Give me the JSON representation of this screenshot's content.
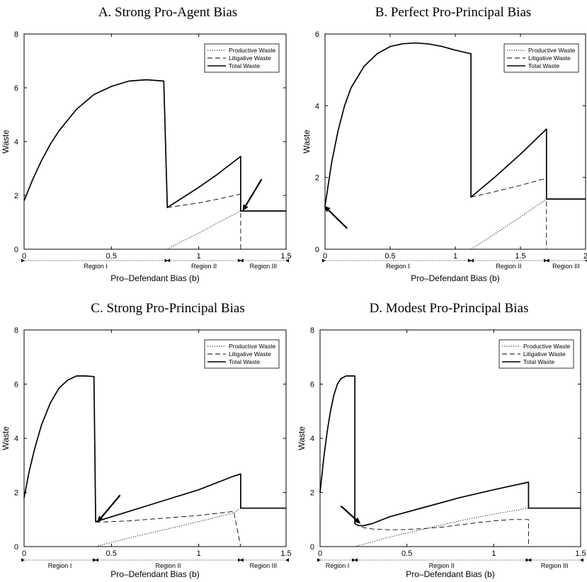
{
  "chart_data": [
    {
      "type": "line",
      "title": "A. Strong Pro-Agent Bias",
      "xlabel": "Pro–Defendant Bias (b)",
      "ylabel": "Waste",
      "xlim": [
        0,
        1.5
      ],
      "ylim": [
        0,
        8
      ],
      "xticks": [
        {
          "v": 0,
          "t": "0"
        },
        {
          "v": 0.5,
          "t": "0.5"
        },
        {
          "v": 1,
          "t": "1"
        },
        {
          "v": 1.5,
          "t": "1.5"
        }
      ],
      "yticks": [
        {
          "v": 0,
          "t": "0"
        },
        {
          "v": 2,
          "t": "2"
        },
        {
          "v": 4,
          "t": "4"
        },
        {
          "v": 6,
          "t": "6"
        },
        {
          "v": 8,
          "t": "8"
        }
      ],
      "grid": false,
      "legend_position": "top-right",
      "series": [
        {
          "name": "Productive Waste",
          "style": "dotted",
          "x": [
            0.82,
            0.9,
            1.0,
            1.1,
            1.24,
            1.24,
            1.5
          ],
          "y": [
            0,
            0.28,
            0.6,
            0.95,
            1.42,
            1.42,
            1.42
          ]
        },
        {
          "name": "Litigative Waste",
          "style": "dashed",
          "x": [
            0.82,
            1.0,
            1.1,
            1.24,
            1.24
          ],
          "y": [
            1.55,
            1.72,
            1.85,
            2.05,
            0
          ]
        },
        {
          "name": "Total Waste",
          "style": "solid",
          "x": [
            0,
            0.05,
            0.1,
            0.15,
            0.2,
            0.3,
            0.4,
            0.5,
            0.6,
            0.7,
            0.8,
            0.8,
            0.82,
            1.0,
            1.1,
            1.24,
            1.24,
            1.5
          ],
          "y": [
            1.8,
            2.6,
            3.3,
            3.9,
            4.4,
            5.2,
            5.75,
            6.05,
            6.25,
            6.3,
            6.25,
            6.25,
            1.55,
            2.3,
            2.75,
            3.45,
            1.42,
            1.42
          ]
        }
      ],
      "regions": [
        {
          "label": "Region I",
          "from": 0,
          "to": 0.82
        },
        {
          "label": "Region II",
          "from": 0.82,
          "to": 1.24
        },
        {
          "label": "Region III",
          "from": 1.24,
          "to": 1.5
        }
      ],
      "arrow": {
        "from": [
          1.36,
          2.6
        ],
        "to": [
          1.26,
          1.52
        ]
      }
    },
    {
      "type": "line",
      "title": "B. Perfect Pro-Principal Bias",
      "xlabel": "Pro–Defendant Bias (b)",
      "ylabel": "Waste",
      "xlim": [
        0,
        2
      ],
      "ylim": [
        0,
        6
      ],
      "xticks": [
        {
          "v": 0,
          "t": "0"
        },
        {
          "v": 0.5,
          "t": "0.5"
        },
        {
          "v": 1,
          "t": "1"
        },
        {
          "v": 1.5,
          "t": "1.5"
        },
        {
          "v": 2,
          "t": "2"
        }
      ],
      "yticks": [
        {
          "v": 0,
          "t": "0"
        },
        {
          "v": 2,
          "t": "2"
        },
        {
          "v": 4,
          "t": "4"
        },
        {
          "v": 6,
          "t": "6"
        }
      ],
      "grid": false,
      "legend_position": "top-right",
      "series": [
        {
          "name": "Productive Waste",
          "style": "dotted",
          "x": [
            1.12,
            1.3,
            1.5,
            1.7,
            1.7,
            2.0
          ],
          "y": [
            0,
            0.42,
            0.9,
            1.4,
            1.4,
            1.4
          ]
        },
        {
          "name": "Litigative Waste",
          "style": "dashed",
          "x": [
            1.12,
            1.3,
            1.5,
            1.7,
            1.7
          ],
          "y": [
            1.45,
            1.6,
            1.78,
            1.98,
            0
          ]
        },
        {
          "name": "Total Waste",
          "style": "solid",
          "x": [
            0,
            0.05,
            0.1,
            0.15,
            0.2,
            0.3,
            0.4,
            0.5,
            0.6,
            0.7,
            0.8,
            0.9,
            1.0,
            1.12,
            1.12,
            1.3,
            1.5,
            1.7,
            1.7,
            2.0
          ],
          "y": [
            1.2,
            2.4,
            3.3,
            4.0,
            4.5,
            5.1,
            5.45,
            5.65,
            5.73,
            5.75,
            5.72,
            5.65,
            5.55,
            5.45,
            1.45,
            2.0,
            2.65,
            3.35,
            1.4,
            1.4
          ]
        }
      ],
      "regions": [
        {
          "label": "Region I",
          "from": 0,
          "to": 1.12
        },
        {
          "label": "Region II",
          "from": 1.12,
          "to": 1.7
        },
        {
          "label": "Region III",
          "from": 1.7,
          "to": 2.0
        }
      ],
      "arrow": {
        "from": [
          0.17,
          0.58
        ],
        "to": [
          0.01,
          1.15
        ]
      }
    },
    {
      "type": "line",
      "title": "C. Strong Pro-Principal Bias",
      "xlabel": "Pro–Defendant Bias (b)",
      "ylabel": "Waste",
      "xlim": [
        0,
        1.5
      ],
      "ylim": [
        0,
        8
      ],
      "xticks": [
        {
          "v": 0,
          "t": "0"
        },
        {
          "v": 0.5,
          "t": "0.5"
        },
        {
          "v": 1,
          "t": "1"
        },
        {
          "v": 1.5,
          "t": "1.5"
        }
      ],
      "yticks": [
        {
          "v": 0,
          "t": "0"
        },
        {
          "v": 2,
          "t": "2"
        },
        {
          "v": 4,
          "t": "4"
        },
        {
          "v": 6,
          "t": "6"
        },
        {
          "v": 8,
          "t": "8"
        }
      ],
      "grid": false,
      "legend_position": "top-right",
      "series": [
        {
          "name": "Productive Waste",
          "style": "dotted",
          "x": [
            0.41,
            0.6,
            0.8,
            1.0,
            1.2,
            1.24,
            1.24,
            1.5
          ],
          "y": [
            0,
            0.32,
            0.62,
            0.92,
            1.25,
            1.42,
            1.42,
            1.42
          ]
        },
        {
          "name": "Litigative Waste",
          "style": "dashed",
          "x": [
            0.41,
            0.6,
            0.8,
            1.0,
            1.2,
            1.24
          ],
          "y": [
            0.9,
            0.95,
            1.05,
            1.15,
            1.3,
            0
          ]
        },
        {
          "name": "Total Waste",
          "style": "solid",
          "x": [
            0,
            0.03,
            0.06,
            0.1,
            0.15,
            0.2,
            0.25,
            0.3,
            0.35,
            0.4,
            0.4,
            0.41,
            0.6,
            0.8,
            1.0,
            1.2,
            1.24,
            1.24,
            1.5
          ],
          "y": [
            1.8,
            2.8,
            3.6,
            4.5,
            5.3,
            5.85,
            6.15,
            6.3,
            6.3,
            6.28,
            6.28,
            0.92,
            1.3,
            1.7,
            2.1,
            2.6,
            2.68,
            1.42,
            1.42
          ]
        }
      ],
      "regions": [
        {
          "label": "Region I",
          "from": 0,
          "to": 0.41
        },
        {
          "label": "Region II",
          "from": 0.41,
          "to": 1.24
        },
        {
          "label": "Region III",
          "from": 1.24,
          "to": 1.5
        }
      ],
      "arrow": {
        "from": [
          0.55,
          1.9
        ],
        "to": [
          0.43,
          0.98
        ]
      }
    },
    {
      "type": "line",
      "title": "D. Modest Pro-Principal Bias",
      "xlabel": "Pro–Defendant Bias (b)",
      "ylabel": "Waste",
      "xlim": [
        0,
        1.5
      ],
      "ylim": [
        0,
        8
      ],
      "xticks": [
        {
          "v": 0,
          "t": "0"
        },
        {
          "v": 0.5,
          "t": "0.5"
        },
        {
          "v": 1,
          "t": "1"
        },
        {
          "v": 1.5,
          "t": "1.5"
        }
      ],
      "yticks": [
        {
          "v": 0,
          "t": "0"
        },
        {
          "v": 2,
          "t": "2"
        },
        {
          "v": 4,
          "t": "4"
        },
        {
          "v": 6,
          "t": "6"
        },
        {
          "v": 8,
          "t": "8"
        }
      ],
      "grid": false,
      "legend_position": "top-right",
      "series": [
        {
          "name": "Productive Waste",
          "style": "dotted",
          "x": [
            0.2,
            0.4,
            0.6,
            0.8,
            1.0,
            1.2,
            1.2,
            1.5
          ],
          "y": [
            0,
            0.35,
            0.65,
            0.95,
            1.2,
            1.42,
            1.42,
            1.42
          ]
        },
        {
          "name": "Litigative Waste",
          "style": "dashed",
          "x": [
            0.2,
            0.25,
            0.3,
            0.4,
            0.5,
            0.6,
            0.7,
            0.8,
            0.9,
            1.0,
            1.1,
            1.2,
            1.2
          ],
          "y": [
            0.85,
            0.7,
            0.65,
            0.62,
            0.63,
            0.67,
            0.72,
            0.8,
            0.88,
            0.95,
            1.0,
            1.0,
            0
          ]
        },
        {
          "name": "Total Waste",
          "style": "solid",
          "x": [
            0,
            0.02,
            0.04,
            0.06,
            0.08,
            0.1,
            0.12,
            0.15,
            0.18,
            0.2,
            0.2,
            0.22,
            0.25,
            0.3,
            0.4,
            0.6,
            0.8,
            1.0,
            1.2,
            1.2,
            1.5
          ],
          "y": [
            2.0,
            3.2,
            4.2,
            5.0,
            5.6,
            6.0,
            6.2,
            6.3,
            6.3,
            6.3,
            0.85,
            0.78,
            0.77,
            0.85,
            1.1,
            1.45,
            1.8,
            2.1,
            2.38,
            1.42,
            1.42
          ]
        }
      ],
      "regions": [
        {
          "label": "Region I",
          "from": 0,
          "to": 0.2
        },
        {
          "label": "Region II",
          "from": 0.2,
          "to": 1.2
        },
        {
          "label": "Region III",
          "from": 1.2,
          "to": 1.5
        }
      ],
      "arrow": {
        "from": [
          0.12,
          1.5
        ],
        "to": [
          0.22,
          0.92
        ]
      }
    }
  ]
}
